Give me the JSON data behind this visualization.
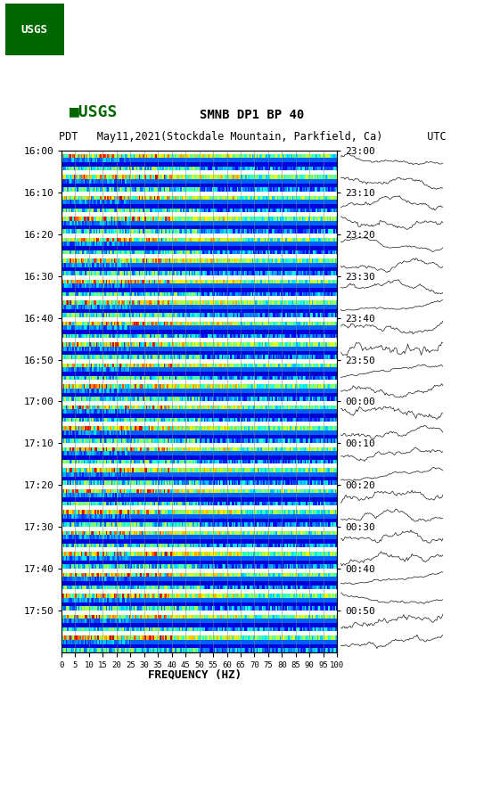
{
  "title_line1": "SMNB DP1 BP 40",
  "title_line2": "PDT   May11,2021(Stockdale Mountain, Parkfield, Ca)       UTC",
  "xlabel": "FREQUENCY (HZ)",
  "freq_ticks": [
    0,
    5,
    10,
    15,
    20,
    25,
    30,
    35,
    40,
    45,
    50,
    55,
    60,
    65,
    70,
    75,
    80,
    85,
    90,
    95,
    100
  ],
  "left_time_labels": [
    "16:00",
    "16:10",
    "16:20",
    "16:30",
    "16:40",
    "16:50",
    "17:00",
    "17:10",
    "17:20",
    "17:30",
    "17:40",
    "17:50"
  ],
  "right_time_labels": [
    "23:00",
    "23:10",
    "23:20",
    "23:30",
    "23:40",
    "23:50",
    "00:00",
    "00:10",
    "00:20",
    "00:30",
    "00:40",
    "00:50"
  ],
  "n_time_slots": 24,
  "n_freq_bins": 200,
  "background_color": "#ffffff",
  "usgs_logo_color": "#006600",
  "text_color": "#000000",
  "grid_color": "#808080",
  "colormap": "jet",
  "fig_width": 5.52,
  "fig_height": 8.92,
  "dpi": 100
}
